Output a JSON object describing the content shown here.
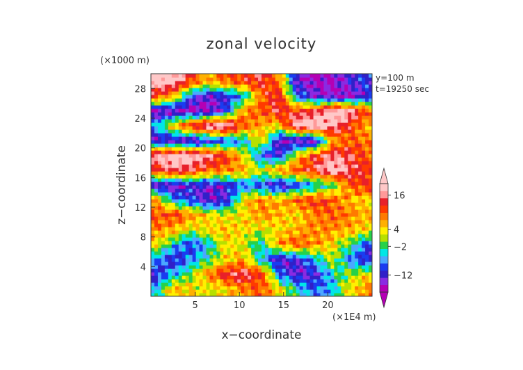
{
  "chart_data": {
    "type": "heatmap",
    "title": "zonal velocity",
    "xlabel": "x−coordinate",
    "ylabel": "z−coordinate",
    "x_unit": "(×1E4 m)",
    "y_unit": "(×1000 m)",
    "annotations": [
      "y=100 m",
      "t=19250 sec"
    ],
    "xlim": [
      0,
      25
    ],
    "ylim": [
      0,
      30
    ],
    "x_ticks": [
      "5",
      "10",
      "15",
      "20"
    ],
    "x_tick_values": [
      5,
      10,
      15,
      20
    ],
    "y_ticks": [
      "4",
      "8",
      "12",
      "16",
      "20",
      "24",
      "28"
    ],
    "y_tick_values": [
      4,
      8,
      12,
      16,
      20,
      24,
      28
    ],
    "colorbar_labels": [
      "16",
      "4",
      "−2",
      "−12"
    ],
    "colorbar_label_values": [
      16,
      4,
      -2,
      -12
    ],
    "colorbar_range": [
      -18,
      20
    ],
    "colorbar_palette": [
      "#b400b4",
      "#8a2be2",
      "#3020c8",
      "#1a3cf0",
      "#4aa8ff",
      "#00e6e6",
      "#26d14a",
      "#b7e000",
      "#fff000",
      "#ffb000",
      "#ff7a00",
      "#ff3a00",
      "#e8202a",
      "#ff9999",
      "#ffc8c8"
    ],
    "grid": false,
    "legend": "colorbar right",
    "field_rows_z": [
      1,
      3,
      5,
      7,
      9,
      11,
      13,
      15,
      17,
      19,
      21,
      23,
      25,
      27,
      29
    ],
    "field_cols_x": [
      0.5,
      2.5,
      4.5,
      6.5,
      8.5,
      10.5,
      12.5,
      14.5,
      16.5,
      18.5,
      20.5,
      22.5,
      24.5
    ],
    "field_values": [
      [
        -6,
        6,
        4,
        2,
        4,
        8,
        10,
        4,
        -4,
        -8,
        -6,
        4,
        8
      ],
      [
        -12,
        -6,
        0,
        8,
        14,
        16,
        12,
        -8,
        -14,
        -12,
        -4,
        0,
        4
      ],
      [
        -6,
        -12,
        -8,
        -2,
        4,
        6,
        -6,
        -14,
        -12,
        -6,
        2,
        -8,
        -12
      ],
      [
        4,
        -4,
        -10,
        -6,
        4,
        2,
        -4,
        8,
        10,
        8,
        4,
        -2,
        -10
      ],
      [
        8,
        6,
        2,
        4,
        6,
        4,
        2,
        4,
        6,
        8,
        8,
        6,
        4
      ],
      [
        10,
        12,
        8,
        4,
        2,
        4,
        8,
        6,
        4,
        8,
        10,
        8,
        6
      ],
      [
        8,
        -6,
        -10,
        -14,
        -12,
        4,
        8,
        6,
        10,
        12,
        10,
        6,
        4
      ],
      [
        -14,
        -16,
        -12,
        -14,
        -12,
        -8,
        -10,
        -14,
        -10,
        -6,
        -2,
        10,
        12
      ],
      [
        12,
        16,
        14,
        10,
        8,
        6,
        2,
        8,
        10,
        14,
        20,
        16,
        12
      ],
      [
        18,
        20,
        20,
        16,
        12,
        4,
        -10,
        -12,
        4,
        12,
        16,
        14,
        10
      ],
      [
        -14,
        -14,
        -16,
        -12,
        -10,
        -6,
        4,
        -14,
        -16,
        -16,
        6,
        10,
        8
      ],
      [
        -6,
        6,
        14,
        20,
        20,
        10,
        6,
        4,
        20,
        20,
        18,
        12,
        6
      ],
      [
        -16,
        -16,
        -16,
        -16,
        -10,
        8,
        10,
        14,
        12,
        14,
        20,
        18,
        10
      ],
      [
        12,
        6,
        -10,
        -14,
        -12,
        -6,
        10,
        14,
        -8,
        -14,
        -16,
        -16,
        -12
      ],
      [
        20,
        20,
        12,
        6,
        10,
        12,
        14,
        8,
        -14,
        -16,
        -16,
        -12,
        -10
      ]
    ]
  }
}
